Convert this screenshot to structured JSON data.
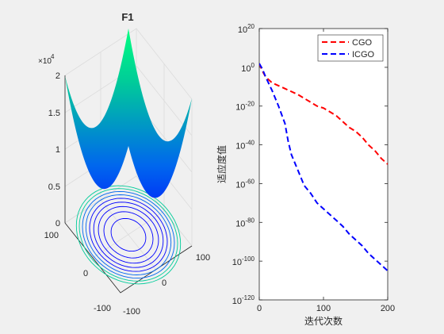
{
  "chart_data": [
    {
      "type": "surface3d",
      "title": "F1",
      "function": "sphere",
      "xlim": [
        -100,
        100
      ],
      "ylim": [
        -100,
        100
      ],
      "zlim": [
        0,
        20000
      ],
      "z_exponent_label": "×10",
      "z_exponent_power": "4",
      "z_ticks": [
        0,
        0.5,
        1,
        1.5,
        2
      ],
      "z_tick_labels": [
        "0",
        "0.5",
        "1",
        "1.5",
        "2"
      ],
      "x_ticks": [
        -100,
        0,
        100
      ],
      "x_tick_labels": [
        "-100",
        "0",
        "100"
      ],
      "y_ticks": [
        -100,
        0,
        100
      ],
      "y_tick_labels": [
        "-100",
        "0",
        "100"
      ],
      "colormap": [
        "#0000ff",
        "#0066ee",
        "#00cc99",
        "#00ff80"
      ],
      "contour_levels": [
        1500,
        3000,
        4500,
        6000,
        7500,
        9000,
        10500,
        12000,
        13500
      ],
      "grid": true
    },
    {
      "type": "line",
      "xlabel": "迭代次数",
      "ylabel": "适应度值",
      "xlim": [
        0,
        200
      ],
      "ylim_exponent": [
        -120,
        20
      ],
      "yscale": "log",
      "x_ticks": [
        0,
        100,
        200
      ],
      "x_tick_labels": [
        "0",
        "100",
        "200"
      ],
      "y_tick_base": "10",
      "y_tick_exponents": [
        "20",
        "0",
        "-20",
        "-40",
        "-60",
        "-80",
        "-100",
        "-120"
      ],
      "legend_position": "top-right",
      "series": [
        {
          "name": "CGO",
          "color": "#ff0000",
          "dash": "dashed",
          "x": [
            0,
            5,
            10,
            20,
            40,
            60,
            80,
            90,
            100,
            110,
            120,
            130,
            140,
            150,
            160,
            170,
            180,
            190,
            200
          ],
          "log10_y": [
            2,
            -2,
            -5,
            -8,
            -11,
            -14,
            -18,
            -20,
            -21,
            -23,
            -25,
            -28,
            -31,
            -33,
            -36,
            -40,
            -43,
            -47,
            -50
          ]
        },
        {
          "name": "ICGO",
          "color": "#0000ff",
          "dash": "dashed",
          "x": [
            0,
            5,
            10,
            20,
            30,
            40,
            45,
            50,
            60,
            70,
            80,
            90,
            100,
            110,
            120,
            130,
            140,
            150,
            160,
            170,
            180,
            190,
            200
          ],
          "log10_y": [
            2,
            -1,
            -5,
            -12,
            -20,
            -29,
            -38,
            -45,
            -53,
            -61,
            -65,
            -70,
            -73,
            -76,
            -79,
            -82,
            -86,
            -89,
            -92,
            -96,
            -99,
            -102,
            -105
          ]
        }
      ]
    }
  ]
}
